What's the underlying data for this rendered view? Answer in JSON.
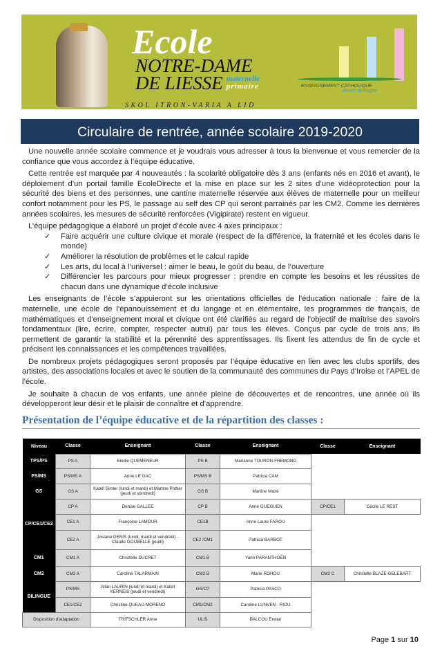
{
  "header": {
    "ecole": "Ecole",
    "name_line1": "NOTRE-DAME",
    "name_line2": "DE LIESSE",
    "maternelle": "maternelle",
    "primaire": "primaire",
    "breton": "SKOL ITRON-VARIA A LID",
    "logo_text": "ENSEIGNEMENT CATHOLIQUE",
    "logo_sub": "Breizh Bretagne"
  },
  "title": "Circulaire de rentrée, année scolaire 2019-2020",
  "paragraphs": [
    "Une nouvelle année scolaire commence et je voudrais vous adresser à tous la bienvenue et vous remercier de la confiance que vous accordez à l’équipe éducative.",
    "Cette rentrée est marquée par 4 nouveautés : la scolarité obligatoire dès 3 ans (enfants nés en 2016 et avant), le déploiement d’un portail famille EcoleDirecte et la mise en place sur les 2 sites d’une vidéoprotection pour la sécurité des biens et des personnes, une cantine maternelle réservée aux élèves de maternelle pour un meilleur confort notamment pour les PS, le passage au self des CP qui seront parrainés par les CM2. Comme les dernières années scolaires, les mesures de sécurité renforcées (Vigipirate) restent en vigueur.",
    "L’équipe pédagogique a élaboré un projet d’école avec 4 axes principaux :"
  ],
  "axes": [
    "Faire acquérir une culture civique et morale (respect de la différence, la fraternité et les écoles dans le monde)",
    "Améliorer la résolution de problèmes et le calcul rapide",
    "Les arts, du local à l’universel : aimer le beau, le goût du beau, de l’ouverture",
    "Différencier les parcours pour mieux progresser : prendre en compte les besoins et les réussites de chacun dans une dynamique d’école inclusive"
  ],
  "paragraphs2": [
    "Les enseignants de l’école s’appuieront sur les orientations officielles de l’éducation nationale : faire de la maternelle, une école de l’épanouissement et du langage et en élémentaire, les programmes de français, de mathématiques et d'enseignement moral et civique ont été clarifiés au regard de l'objectif de maîtrise des savoirs fondamentaux (lire, écrire, compter, respecter autrui) par tous les élèves. Conçus par cycle de trois ans, ils permettent de garantir la stabilité et la pérennité des apprentissages. Ils fixent les attendus de fin de cycle et précisent les connaissances et les compétences travaillées.",
    "De nombreux projets pédagogiques seront proposés par l’équipe éducative en lien avec les clubs sportifs, des artistes, des associations locales et avec le soutien de la communauté des communes du Pays d’Iroise et l’APEL de l’école.",
    "Je souhaite à chacun de vos enfants, une année pleine de découvertes et de rencontres, une année où ils développeront leur désir et le plaisir de connaître et d’apprendre."
  ],
  "section_title": "Présentation de l’équipe éducative et de la répartition des classes :",
  "table": {
    "headers": [
      "Niveau",
      "Classe",
      "Enseignant",
      "Classe",
      "Enseignant",
      "Classe",
      "Enseignant"
    ],
    "niveaux": [
      "TPS/PS",
      "PS/MS",
      "GS",
      "CP/CE1/CE2",
      "CM1",
      "CM2",
      "BILINGUE",
      "Disposition d’adaptation"
    ],
    "rows": [
      [
        "PS A",
        "Elodie QUEMENEUR",
        "PS B",
        "Marianne TOURON-FREMOND"
      ],
      [
        "PS/MS A",
        "Anne LE GAC",
        "PS/MS B",
        "Patricia CAM"
      ],
      [
        "GS A",
        "Katell Simler (lundi et mardi) et Martine Pottier (jeudi et vendredi)",
        "GS B",
        "Martine Mazé"
      ],
      [
        "CP A",
        "Denise GALLEE",
        "CP B",
        "Anne GUEGUEN",
        "CP/CE1",
        "Cécile LE REST"
      ],
      [
        "CE1 A",
        "Françoise LAMOUR",
        "CE1B",
        "Anne Laure FAROU"
      ],
      [
        "CE2 A",
        "Josiane DENIS (lundi, mardi et vendredi) - Claude GOUBELLE (jeudi)",
        "CE2 /CM1",
        "Patricia BARBOT"
      ],
      [
        "CM1 A",
        "Chrsitelle DUCRET",
        "CM1 B",
        "Yann PARANTHOEN"
      ],
      [
        "CM2 A",
        "Caroline TALARMAIN",
        "CM2 B",
        "Marie ROHOU",
        "CM2 C",
        "Christelle BLAZE-GELEBART"
      ],
      [
        "PS/MS",
        "Allan LAURIN (lundi et mardi)  et Katell KERNEIS (jeudi et vendredi)",
        "GS/CP",
        "Patricia PASCO"
      ],
      [
        "CE1/CE2",
        "Christine QUEAU-MORENO",
        "CM1/CM2",
        "Caroline LUNVEN - RIOU"
      ],
      [
        "",
        "TRITSCHLER Anne",
        "ULIS",
        "BALCOU Erwan"
      ]
    ]
  },
  "footer": {
    "page": "Page",
    "current": "1",
    "sur": "sur",
    "total": "10"
  }
}
